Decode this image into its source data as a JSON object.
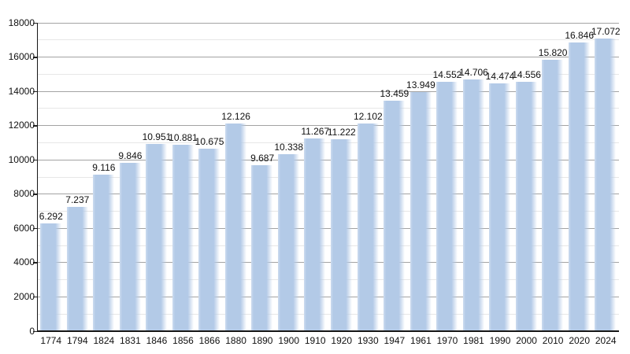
{
  "chart_data": {
    "type": "bar",
    "title": "",
    "xlabel": "",
    "ylabel": "",
    "categories": [
      "1774",
      "1794",
      "1824",
      "1831",
      "1846",
      "1856",
      "1866",
      "1880",
      "1890",
      "1900",
      "1910",
      "1920",
      "1930",
      "1947",
      "1961",
      "1970",
      "1981",
      "1990",
      "2000",
      "2010",
      "2020",
      "2024"
    ],
    "values": [
      6292,
      7237,
      9116,
      9846,
      10951,
      10881,
      10675,
      12126,
      9687,
      10338,
      11267,
      11222,
      12102,
      13459,
      13949,
      14552,
      14706,
      14474,
      14556,
      15820,
      16846,
      17072
    ],
    "value_labels": [
      "6.292",
      "7.237",
      "9.116",
      "9.846",
      "10.951",
      "10.881",
      "10.675",
      "12.126",
      "9.687",
      "10.338",
      "11.267",
      "11.222",
      "12.102",
      "13.459",
      "13.949",
      "14.552",
      "14.706",
      "14.474",
      "14.556",
      "15.820",
      "16.846",
      "17.072"
    ],
    "ylim": [
      0,
      18000
    ],
    "ytick_step_major": 2000,
    "ytick_step_minor": 1000,
    "ytick_labels": [
      "0",
      "2000",
      "4000",
      "6000",
      "8000",
      "10000",
      "12000",
      "14000",
      "16000",
      "18000"
    ],
    "grid": "horizontal",
    "legend": "none",
    "colors": {
      "bar": "#b3cae7",
      "bar_left_highlight": "#cddcef",
      "grid_major": "#a3a3a3",
      "grid_minor": "#e7e7e7",
      "axis": "#161616",
      "text": "#111111",
      "background": "#ffffff"
    }
  }
}
